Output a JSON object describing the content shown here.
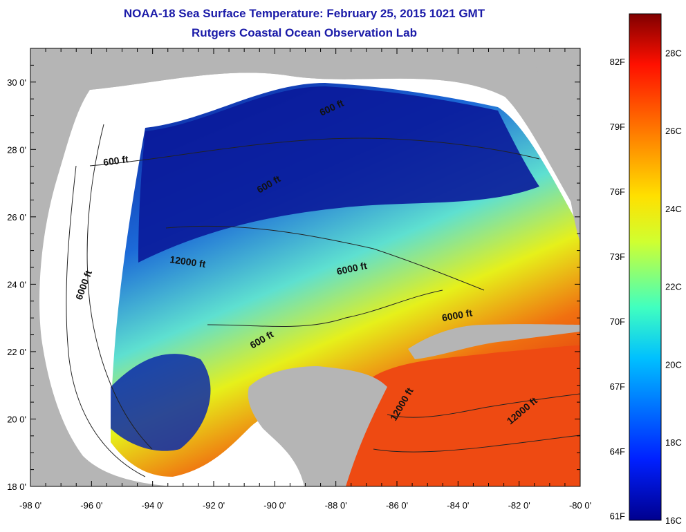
{
  "header": {
    "title": "NOAA-18 Sea Surface Temperature:  February 25, 2015 1021 GMT",
    "subtitle": "Rutgers Coastal Ocean Observation Lab"
  },
  "map": {
    "lon_range": [
      -98,
      -80
    ],
    "lat_range": [
      18,
      31
    ],
    "x_ticks": [
      "-98 0'",
      "-96 0'",
      "-94 0'",
      "-92 0'",
      "-90 0'",
      "-88 0'",
      "-86 0'",
      "-84 0'",
      "-82 0'",
      "-80 0'"
    ],
    "y_ticks": [
      "18 0'",
      "20 0'",
      "22 0'",
      "24 0'",
      "26 0'",
      "28 0'",
      "30 0'"
    ],
    "contour_labels": [
      "600 ft",
      "600 ft",
      "6000 ft",
      "6000 ft",
      "12000 ft",
      "600 ft",
      "12000 ft",
      "12000 ft",
      "600 ft",
      "6000 ft"
    ],
    "colors": {
      "land": "#b5b5b5",
      "cloud": "#ffffff",
      "cold": "#0a1a9a",
      "warm": "#f05a10"
    }
  },
  "colorbar": {
    "fahrenheit_labels": [
      "82F",
      "79F",
      "76F",
      "73F",
      "70F",
      "67F",
      "64F",
      "61F"
    ],
    "celsius_labels": [
      "28C",
      "26C",
      "24C",
      "22C",
      "20C",
      "18C",
      "16C"
    ],
    "range_c": [
      16,
      29
    ]
  }
}
